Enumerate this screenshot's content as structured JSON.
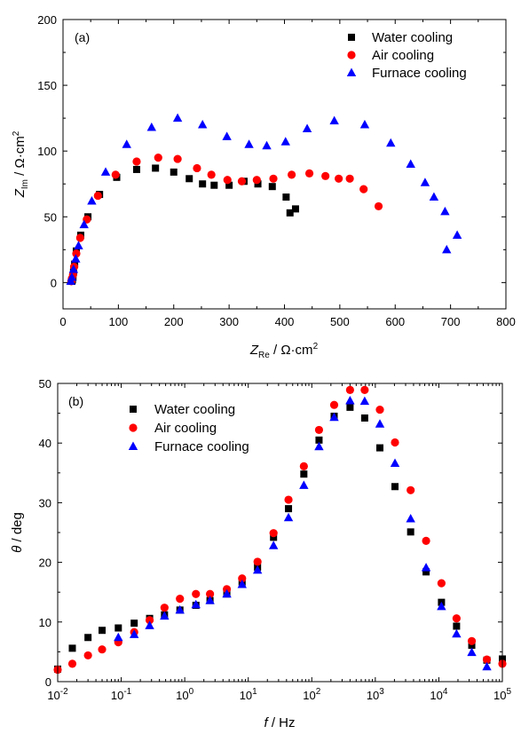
{
  "chart_data": [
    {
      "type": "scatter",
      "panel_label": "(a)",
      "xlabel": {
        "main": "Z",
        "sub": "Re",
        "unit": " / Ω·cm",
        "sup": "2"
      },
      "ylabel": {
        "main": "Z",
        "sub": "Im",
        "unit": " / Ω·cm",
        "sup": "2"
      },
      "xlim": [
        0,
        800
      ],
      "ylim": [
        -20,
        200
      ],
      "x_scale": "linear",
      "y_scale": "linear",
      "x_ticks": [
        0,
        100,
        200,
        300,
        400,
        500,
        600,
        700,
        800
      ],
      "y_ticks": [
        0,
        50,
        100,
        150,
        200
      ],
      "x_tick_labels": [
        "0",
        "100",
        "200",
        "300",
        "400",
        "500",
        "600",
        "700",
        "800"
      ],
      "y_tick_labels": [
        "0",
        "50",
        "100",
        "150",
        "200"
      ],
      "legend_position": "top-right",
      "series": [
        {
          "name": "Water cooling",
          "marker": "square",
          "color": "#000000",
          "points": [
            [
              16,
              1
            ],
            [
              17,
              2
            ],
            [
              18,
              4
            ],
            [
              19,
              8
            ],
            [
              21,
              14
            ],
            [
              24,
              24
            ],
            [
              32,
              36
            ],
            [
              45,
              50
            ],
            [
              66,
              67
            ],
            [
              97,
              80
            ],
            [
              133,
              86
            ],
            [
              167,
              87
            ],
            [
              200,
              84
            ],
            [
              228,
              79
            ],
            [
              252,
              75
            ],
            [
              273,
              74
            ],
            [
              300,
              74
            ],
            [
              327,
              77
            ],
            [
              352,
              75
            ],
            [
              378,
              73
            ],
            [
              403,
              65
            ],
            [
              410,
              53
            ],
            [
              420,
              56
            ]
          ]
        },
        {
          "name": "Air cooling",
          "marker": "circle",
          "color": "#ff0000",
          "points": [
            [
              15,
              1
            ],
            [
              16,
              3
            ],
            [
              18,
              6
            ],
            [
              20,
              12
            ],
            [
              24,
              22
            ],
            [
              31,
              34
            ],
            [
              43,
              48
            ],
            [
              63,
              66
            ],
            [
              95,
              82
            ],
            [
              133,
              92
            ],
            [
              172,
              95
            ],
            [
              207,
              94
            ],
            [
              242,
              87
            ],
            [
              268,
              82
            ],
            [
              297,
              78
            ],
            [
              323,
              77
            ],
            [
              350,
              78
            ],
            [
              380,
              79
            ],
            [
              413,
              82
            ],
            [
              445,
              83
            ],
            [
              474,
              81
            ],
            [
              498,
              79
            ],
            [
              518,
              79
            ],
            [
              543,
              71
            ],
            [
              570,
              58
            ]
          ]
        },
        {
          "name": "Furnace cooling",
          "marker": "triangle",
          "color": "#0000ff",
          "points": [
            [
              14,
              1
            ],
            [
              16,
              4
            ],
            [
              19,
              10
            ],
            [
              23,
              18
            ],
            [
              28,
              28
            ],
            [
              38,
              44
            ],
            [
              52,
              62
            ],
            [
              77,
              84
            ],
            [
              115,
              105
            ],
            [
              160,
              118
            ],
            [
              207,
              125
            ],
            [
              252,
              120
            ],
            [
              296,
              111
            ],
            [
              336,
              105
            ],
            [
              368,
              104
            ],
            [
              402,
              107
            ],
            [
              441,
              117
            ],
            [
              490,
              123
            ],
            [
              545,
              120
            ],
            [
              592,
              106
            ],
            [
              628,
              90
            ],
            [
              654,
              76
            ],
            [
              670,
              65
            ],
            [
              690,
              54
            ],
            [
              693,
              25
            ],
            [
              712,
              36
            ]
          ]
        }
      ]
    },
    {
      "type": "scatter",
      "panel_label": "(b)",
      "xlabel": {
        "main": "f",
        "unit": " / Hz"
      },
      "ylabel": {
        "main": "θ",
        "unit": " / deg"
      },
      "xlim": [
        0.01,
        100000
      ],
      "ylim": [
        0,
        50
      ],
      "x_scale": "log",
      "y_scale": "linear",
      "x_tick_labels": [
        {
          "base": "10",
          "exp": "-2"
        },
        {
          "base": "10",
          "exp": "-1"
        },
        {
          "base": "10",
          "exp": "0"
        },
        {
          "base": "10",
          "exp": "1"
        },
        {
          "base": "10",
          "exp": "2"
        },
        {
          "base": "10",
          "exp": "3"
        },
        {
          "base": "10",
          "exp": "4"
        },
        {
          "base": "10",
          "exp": "5"
        }
      ],
      "y_ticks": [
        0,
        10,
        20,
        30,
        40,
        50
      ],
      "y_tick_labels": [
        "0",
        "10",
        "20",
        "30",
        "40",
        "50"
      ],
      "legend_position": "top-left",
      "series": [
        {
          "name": "Water cooling",
          "marker": "square",
          "color": "#000000",
          "points": [
            [
              0.01,
              2.1
            ],
            [
              0.017,
              5.6
            ],
            [
              0.03,
              7.4
            ],
            [
              0.05,
              8.6
            ],
            [
              0.09,
              9.0
            ],
            [
              0.16,
              9.8
            ],
            [
              0.28,
              10.6
            ],
            [
              0.48,
              11.2
            ],
            [
              0.84,
              12.0
            ],
            [
              1.5,
              12.8
            ],
            [
              2.5,
              13.6
            ],
            [
              4.6,
              14.7
            ],
            [
              8,
              16.7
            ],
            [
              14,
              19.2
            ],
            [
              25,
              24.2
            ],
            [
              43,
              29.0
            ],
            [
              75,
              34.8
            ],
            [
              130,
              40.5
            ],
            [
              225,
              44.5
            ],
            [
              400,
              46.0
            ],
            [
              680,
              44.2
            ],
            [
              1180,
              39.2
            ],
            [
              2040,
              32.7
            ],
            [
              3600,
              25.1
            ],
            [
              6300,
              18.4
            ],
            [
              11000,
              13.3
            ],
            [
              19000,
              9.3
            ],
            [
              33000,
              6.1
            ],
            [
              57000,
              3.6
            ],
            [
              100000,
              3.8
            ]
          ]
        },
        {
          "name": "Air cooling",
          "marker": "circle",
          "color": "#ff0000",
          "points": [
            [
              0.01,
              2.0
            ],
            [
              0.017,
              3.0
            ],
            [
              0.03,
              4.4
            ],
            [
              0.05,
              5.4
            ],
            [
              0.09,
              6.6
            ],
            [
              0.16,
              8.3
            ],
            [
              0.28,
              10.3
            ],
            [
              0.48,
              12.4
            ],
            [
              0.84,
              13.9
            ],
            [
              1.5,
              14.7
            ],
            [
              2.5,
              14.7
            ],
            [
              4.6,
              15.5
            ],
            [
              8,
              17.3
            ],
            [
              14,
              20.1
            ],
            [
              25,
              24.9
            ],
            [
              43,
              30.5
            ],
            [
              75,
              36.1
            ],
            [
              130,
              42.2
            ],
            [
              225,
              46.4
            ],
            [
              400,
              48.9
            ],
            [
              680,
              48.9
            ],
            [
              1180,
              45.6
            ],
            [
              2040,
              40.1
            ],
            [
              3600,
              32.1
            ],
            [
              6300,
              23.6
            ],
            [
              11000,
              16.5
            ],
            [
              19000,
              10.6
            ],
            [
              33000,
              6.8
            ],
            [
              57000,
              3.7
            ],
            [
              100000,
              3.0
            ]
          ]
        },
        {
          "name": "Furnace cooling",
          "marker": "triangle",
          "color": "#0000ff",
          "points": [
            [
              0.09,
              7.4
            ],
            [
              0.16,
              7.9
            ],
            [
              0.28,
              9.4
            ],
            [
              0.48,
              11.0
            ],
            [
              0.84,
              12.0
            ],
            [
              1.5,
              12.9
            ],
            [
              2.5,
              13.6
            ],
            [
              4.6,
              14.7
            ],
            [
              8,
              16.3
            ],
            [
              14,
              18.7
            ],
            [
              25,
              22.8
            ],
            [
              43,
              27.5
            ],
            [
              75,
              32.9
            ],
            [
              130,
              39.4
            ],
            [
              225,
              44.3
            ],
            [
              400,
              47.1
            ],
            [
              680,
              47.0
            ],
            [
              1180,
              43.2
            ],
            [
              2040,
              36.6
            ],
            [
              3600,
              27.3
            ],
            [
              6300,
              19.1
            ],
            [
              11000,
              12.6
            ],
            [
              19000,
              8.0
            ],
            [
              33000,
              4.9
            ],
            [
              57000,
              2.5
            ]
          ]
        }
      ]
    }
  ]
}
